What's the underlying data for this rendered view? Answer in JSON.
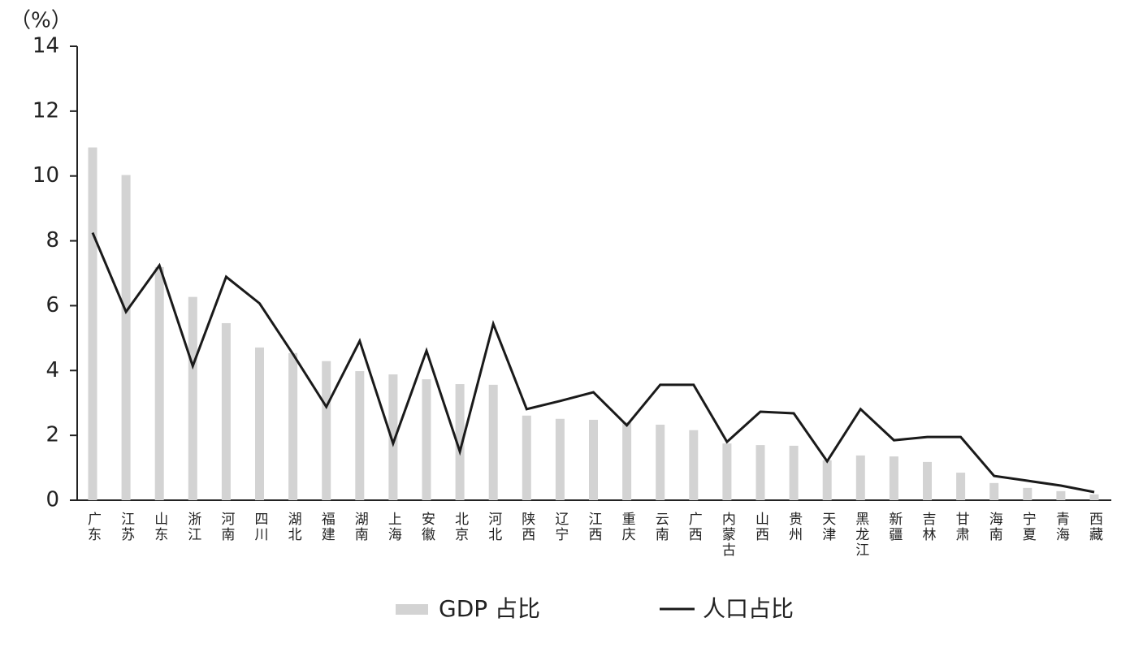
{
  "chart_data": {
    "type": "bar-line",
    "y_label": "（%）",
    "categories": [
      "广东",
      "江苏",
      "山东",
      "浙江",
      "河南",
      "四川",
      "湖北",
      "福建",
      "湖南",
      "上海",
      "安徽",
      "北京",
      "河北",
      "陕西",
      "辽宁",
      "江西",
      "重庆",
      "云南",
      "广西",
      "内蒙古",
      "山西",
      "贵州",
      "天津",
      "黑龙江",
      "新疆",
      "吉林",
      "甘肃",
      "海南",
      "宁夏",
      "青海",
      "西藏"
    ],
    "series": [
      {
        "name": "GDP 占比",
        "type": "bar",
        "color": "#d3d3d3",
        "values": [
          10.88,
          10.03,
          7.19,
          6.27,
          5.46,
          4.71,
          4.54,
          4.29,
          3.98,
          3.88,
          3.73,
          3.58,
          3.56,
          2.61,
          2.51,
          2.48,
          2.41,
          2.33,
          2.16,
          1.75,
          1.7,
          1.68,
          1.23,
          1.38,
          1.35,
          1.18,
          0.85,
          0.53,
          0.38,
          0.28,
          0.18
        ]
      },
      {
        "name": "人口占比",
        "type": "line",
        "color": "#1a1a1a",
        "values": [
          8.25,
          5.81,
          7.24,
          4.14,
          6.89,
          6.07,
          4.51,
          2.88,
          4.91,
          1.75,
          4.61,
          1.5,
          5.44,
          2.81,
          3.06,
          3.33,
          2.31,
          3.56,
          3.56,
          1.8,
          2.73,
          2.68,
          1.2,
          2.81,
          1.85,
          1.95,
          1.95,
          0.75,
          0.6,
          0.45,
          0.25
        ]
      }
    ],
    "ylim": [
      0,
      14
    ],
    "yticks": [
      0,
      2,
      4,
      6,
      8,
      10,
      12,
      14
    ],
    "grid": false
  }
}
